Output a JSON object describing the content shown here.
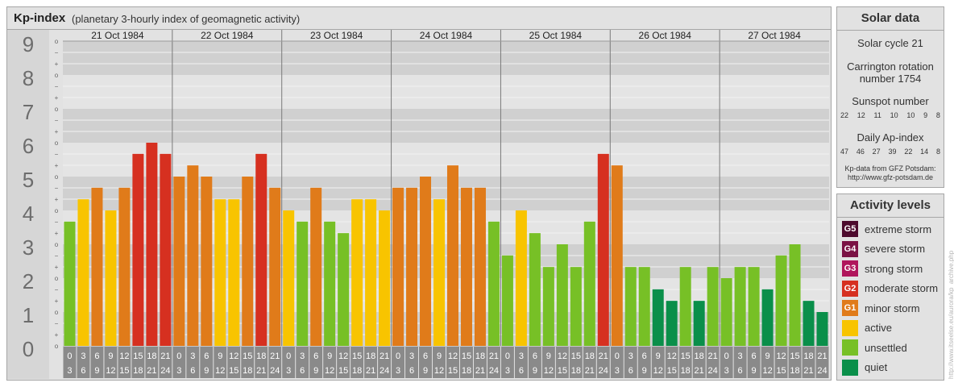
{
  "header": {
    "title": "Kp-index",
    "subtitle": "(planetary 3-hourly index of geomagnetic activity)"
  },
  "chart_data": {
    "type": "bar",
    "ylim": [
      0,
      9
    ],
    "y_ticks": [
      "0",
      "1",
      "2",
      "3",
      "4",
      "5",
      "6",
      "7",
      "8",
      "9"
    ],
    "minor_ticks": [
      "o",
      "+",
      "−"
    ],
    "days": [
      "21 Oct 1984",
      "22 Oct 1984",
      "23 Oct 1984",
      "24 Oct 1984",
      "25 Oct 1984",
      "26 Oct 1984",
      "27 Oct 1984"
    ],
    "interval_labels": [
      [
        "0",
        "3"
      ],
      [
        "3",
        "6"
      ],
      [
        "6",
        "9"
      ],
      [
        "9",
        "12"
      ],
      [
        "12",
        "15"
      ],
      [
        "15",
        "18"
      ],
      [
        "18",
        "21"
      ],
      [
        "21",
        "24"
      ]
    ],
    "values": [
      [
        3.67,
        4.33,
        4.67,
        4.0,
        4.67,
        5.67,
        6.0,
        5.67
      ],
      [
        5.0,
        5.33,
        5.0,
        4.33,
        4.33,
        5.0,
        5.67,
        4.67
      ],
      [
        4.0,
        3.67,
        4.67,
        3.67,
        3.33,
        4.33,
        4.33,
        4.0
      ],
      [
        4.67,
        4.67,
        5.0,
        4.33,
        5.33,
        4.67,
        4.67,
        3.67
      ],
      [
        2.67,
        4.0,
        3.33,
        2.33,
        3.0,
        2.33,
        3.67,
        5.67
      ],
      [
        5.33,
        2.33,
        2.33,
        1.67,
        1.33,
        2.33,
        1.33,
        2.33
      ],
      [
        2.0,
        2.33,
        2.33,
        1.67,
        2.67,
        3.0,
        1.33,
        1.0
      ]
    ]
  },
  "solar": {
    "heading": "Solar data",
    "cycle": "Solar cycle 21",
    "carrington_line1": "Carrington rotation",
    "carrington_line2": "number 1754",
    "sunspot_label": "Sunspot number",
    "sunspot_values": [
      "22",
      "12",
      "11",
      "10",
      "10",
      "9",
      "8"
    ],
    "ap_label": "Daily Ap-index",
    "ap_values": [
      "47",
      "46",
      "27",
      "39",
      "22",
      "14",
      "8"
    ],
    "credit_line1": "Kp-data from GFZ Potsdam:",
    "credit_line2": "http://www.gfz-potsdam.de"
  },
  "activity": {
    "heading": "Activity levels",
    "levels": [
      {
        "code": "G5",
        "label": "extreme storm",
        "color": "#4d0a2d"
      },
      {
        "code": "G4",
        "label": "severe storm",
        "color": "#7a1244"
      },
      {
        "code": "G3",
        "label": "strong storm",
        "color": "#b0165c"
      },
      {
        "code": "G2",
        "label": "moderate storm",
        "color": "#d63020"
      },
      {
        "code": "G1",
        "label": "minor storm",
        "color": "#e07b1a"
      },
      {
        "code": "",
        "label": "active",
        "color": "#f8c400"
      },
      {
        "code": "",
        "label": "unsettled",
        "color": "#77c026"
      },
      {
        "code": "",
        "label": "quiet",
        "color": "#0a8f4a"
      }
    ]
  },
  "watermark": "http://www.itseelse.eu/aurora/kp_archive.php"
}
